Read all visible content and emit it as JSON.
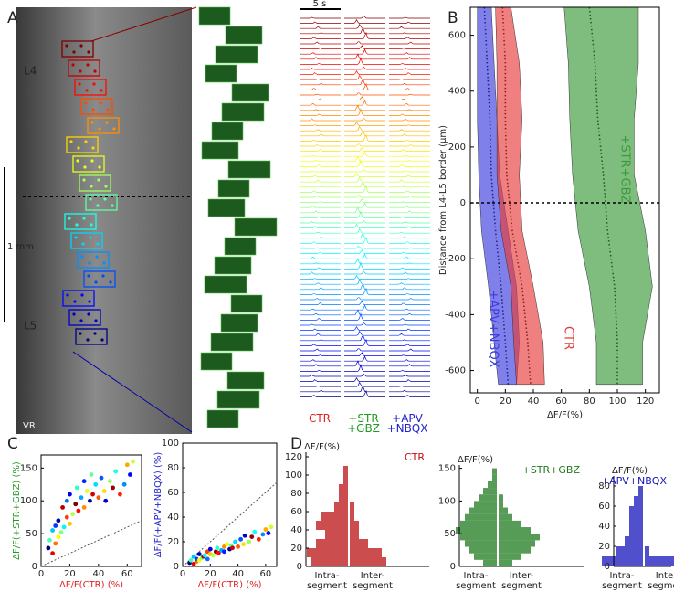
{
  "panel_a": {
    "panel": "A",
    "layer_top": "L4",
    "layer_bottom": "L5",
    "scale": "1 mm",
    "corner": "VR",
    "time_scale": "5 s",
    "conditions": [
      [
        "CTR"
      ],
      [
        "+STR",
        "+GBZ"
      ],
      [
        "+APV",
        "+NBQX"
      ]
    ],
    "condition_colors": [
      "#dd2222",
      "#229922",
      "#2222cc"
    ]
  },
  "chart_data": [
    {
      "type": "band",
      "panel": "B",
      "ylabel": "Distance from L4-L5 border (μm)",
      "xlabel": "ΔF/F(%)",
      "xlim": [
        -5,
        130
      ],
      "ylim": [
        -680,
        700
      ],
      "xticks": [
        0,
        20,
        40,
        60,
        80,
        100,
        120
      ],
      "yticks": [
        -600,
        -400,
        -200,
        0,
        200,
        400,
        600
      ],
      "hline": 0,
      "y": [
        700,
        500,
        300,
        100,
        -100,
        -300,
        -500,
        -650
      ],
      "series": [
        {
          "name": "+APV+NBQX",
          "color": "#3c3ce0",
          "low": [
            0,
            0,
            0,
            1,
            3,
            8,
            12,
            15
          ],
          "high": [
            10,
            12,
            14,
            16,
            22,
            28,
            30,
            28
          ],
          "mean": [
            5,
            7,
            9,
            10,
            13,
            17,
            20,
            22
          ]
        },
        {
          "name": "CTR",
          "color": "#e83a3a",
          "low": [
            13,
            14,
            14,
            14,
            17,
            24,
            26,
            28
          ],
          "high": [
            24,
            30,
            32,
            30,
            32,
            40,
            47,
            48
          ],
          "mean": [
            18,
            20,
            20,
            21,
            25,
            32,
            36,
            38
          ]
        },
        {
          "name": "+STR+GBZ",
          "color": "#3a9a3a",
          "low": [
            62,
            65,
            66,
            68,
            72,
            80,
            85,
            85
          ],
          "high": [
            115,
            115,
            112,
            112,
            120,
            125,
            118,
            118
          ],
          "mean": [
            80,
            84,
            86,
            90,
            93,
            98,
            100,
            100
          ]
        }
      ]
    },
    {
      "type": "scatter",
      "panel": "C",
      "xlabel": "ΔF/F(CTR) (%)",
      "ylabel": "ΔF/F(+STR+GBZ) (%)",
      "xlabel_color": "#dd2222",
      "ylabel_color": "#229922",
      "xlim": [
        0,
        70
      ],
      "ylim": [
        0,
        170
      ],
      "xticks": [
        0,
        20,
        40,
        60
      ],
      "yticks": [
        0,
        50,
        100,
        150
      ],
      "colormap": "jet",
      "diagonal": true,
      "x": [
        5,
        6,
        8,
        8,
        10,
        10,
        12,
        12,
        14,
        15,
        16,
        18,
        18,
        20,
        20,
        22,
        24,
        25,
        26,
        28,
        30,
        30,
        32,
        34,
        35,
        36,
        38,
        40,
        42,
        44,
        45,
        48,
        50,
        52,
        55,
        58,
        60,
        62,
        64
      ],
      "y": [
        28,
        40,
        20,
        55,
        35,
        62,
        45,
        70,
        52,
        90,
        60,
        75,
        100,
        65,
        110,
        80,
        95,
        120,
        85,
        105,
        90,
        130,
        115,
        100,
        140,
        110,
        125,
        105,
        135,
        115,
        100,
        130,
        120,
        145,
        110,
        125,
        155,
        140,
        160
      ]
    },
    {
      "type": "scatter",
      "xlabel": "ΔF/F(CTR) (%)",
      "ylabel": "ΔF/F(+APV+NBQX) (%)",
      "xlabel_color": "#dd2222",
      "ylabel_color": "#2222cc",
      "xlim": [
        0,
        68
      ],
      "ylim": [
        0,
        100
      ],
      "xticks": [
        0,
        20,
        40,
        60
      ],
      "yticks": [
        0,
        20,
        40,
        60,
        80,
        100
      ],
      "colormap": "jet",
      "diagonal": true,
      "x": [
        5,
        6,
        8,
        8,
        10,
        10,
        12,
        12,
        14,
        15,
        16,
        18,
        18,
        20,
        20,
        22,
        24,
        25,
        26,
        28,
        30,
        30,
        32,
        34,
        35,
        36,
        38,
        40,
        42,
        44,
        45,
        48,
        50,
        52,
        55,
        58,
        60,
        62,
        64
      ],
      "y": [
        3,
        5,
        2,
        8,
        4,
        6,
        5,
        10,
        7,
        8,
        9,
        12,
        6,
        10,
        14,
        9,
        12,
        15,
        11,
        13,
        16,
        12,
        18,
        14,
        17,
        15,
        20,
        16,
        22,
        18,
        25,
        20,
        24,
        28,
        22,
        26,
        30,
        27,
        32
      ]
    },
    {
      "type": "split",
      "panel": "D",
      "title": "CTR",
      "color": "#bb1111",
      "ylabel": "ΔF/F(%)",
      "ylim": [
        0,
        125
      ],
      "yticks": [
        0,
        20,
        40,
        60,
        80,
        100,
        120
      ],
      "bins": [
        0,
        10,
        20,
        30,
        40,
        50,
        60,
        70,
        80,
        90,
        100,
        110
      ],
      "intra": [
        8,
        9,
        7,
        5,
        7,
        6,
        3,
        2,
        2,
        1,
        1
      ],
      "inter": [
        8,
        7,
        4,
        2,
        2,
        1,
        1,
        0,
        0,
        0,
        0
      ],
      "intra_label": [
        "Intra-",
        "segment"
      ],
      "inter_label": [
        "Inter-",
        "segment"
      ]
    },
    {
      "type": "split",
      "title": "+STR+GBZ",
      "color": "#1e7a1e",
      "ylabel": "ΔF/F(%)",
      "ylim": [
        0,
        155
      ],
      "yticks": [
        0,
        50,
        100,
        150
      ],
      "bins": [
        0,
        10,
        20,
        30,
        40,
        50,
        60,
        70,
        80,
        90,
        100,
        110,
        120,
        130,
        140,
        150
      ],
      "intra": [
        3,
        5,
        6,
        7,
        8,
        9,
        8,
        7,
        6,
        5,
        4,
        3,
        2,
        1,
        1
      ],
      "inter": [
        3,
        5,
        7,
        8,
        9,
        7,
        5,
        3,
        2,
        1,
        1,
        0,
        0,
        0,
        0
      ],
      "intra_label": [
        "Intra-",
        "segment"
      ],
      "inter_label": [
        "Inter-",
        "segment"
      ]
    },
    {
      "type": "split",
      "title": "+APV+NBQX",
      "color": "#1515bb",
      "ylabel": "ΔF/F(%)",
      "ylim": [
        0,
        90
      ],
      "yticks": [
        0,
        20,
        40,
        60,
        80
      ],
      "bins": [
        0,
        10,
        20,
        30,
        40,
        50,
        60,
        70,
        80
      ],
      "intra": [
        9,
        6,
        4,
        3,
        3,
        3,
        2,
        1
      ],
      "inter": [
        8,
        1,
        0,
        0,
        0,
        0,
        0,
        0
      ],
      "intra_label": [
        "Intra-",
        "segment"
      ],
      "inter_label": [
        "Inter-",
        "segment"
      ]
    }
  ]
}
